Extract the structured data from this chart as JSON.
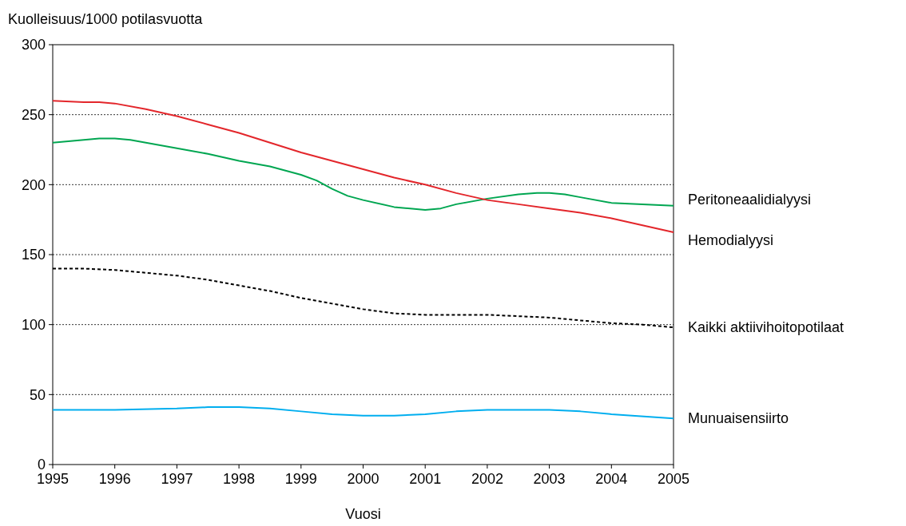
{
  "chart_data": {
    "type": "line",
    "ylabel": "Kuolleisuus/1000 potilasvuotta",
    "xlabel": "Vuosi",
    "xlim": [
      1995,
      2005
    ],
    "xticks": [
      1995,
      1996,
      1997,
      1998,
      1999,
      2000,
      2001,
      2002,
      2003,
      2004,
      2005
    ],
    "ylim": [
      0,
      300
    ],
    "yticks": [
      0,
      50,
      100,
      150,
      200,
      250,
      300
    ],
    "grid": "y",
    "series": [
      {
        "name": "Peritoneaalidialyysi",
        "color": "#00a651",
        "x": [
          1995,
          1995.5,
          1995.75,
          1996,
          1996.25,
          1996.5,
          1997,
          1997.5,
          1998,
          1998.5,
          1999,
          1999.25,
          1999.5,
          1999.75,
          2000,
          2000.5,
          2001,
          2001.25,
          2001.5,
          2002,
          2002.5,
          2002.8,
          2003,
          2003.25,
          2003.5,
          2004,
          2004.5,
          2005
        ],
        "values": [
          230,
          232,
          233,
          233,
          232,
          230,
          226,
          222,
          217,
          213,
          207,
          203,
          197,
          192,
          189,
          184,
          182,
          183,
          186,
          190,
          193,
          194,
          194,
          193,
          191,
          187,
          186,
          185
        ]
      },
      {
        "name": "Hemodialyysi",
        "color": "#e3262b",
        "x": [
          1995,
          1995.5,
          1995.75,
          1996,
          1996.5,
          1997,
          1997.5,
          1998,
          1998.5,
          1999,
          1999.5,
          2000,
          2000.5,
          2001,
          2001.5,
          2002,
          2002.5,
          2003,
          2003.5,
          2004,
          2004.5,
          2005
        ],
        "values": [
          260,
          259,
          259,
          258,
          254,
          249,
          243,
          237,
          230,
          223,
          217,
          211,
          205,
          200,
          194,
          189,
          186,
          183,
          180,
          176,
          171,
          166
        ]
      },
      {
        "name": "Kaikki aktiivihoitopotilaat",
        "color": "#000000",
        "line_style": "dashed",
        "x": [
          1995,
          1995.5,
          1996,
          1996.5,
          1997,
          1997.5,
          1998,
          1998.5,
          1999,
          1999.5,
          2000,
          2000.5,
          2001,
          2001.5,
          2002,
          2002.5,
          2003,
          2003.5,
          2004,
          2004.5,
          2005
        ],
        "values": [
          140,
          140,
          139,
          137,
          135,
          132,
          128,
          124,
          119,
          115,
          111,
          108,
          107,
          107,
          107,
          106,
          105,
          103,
          101,
          100,
          98
        ]
      },
      {
        "name": "Munuaisensiirto",
        "color": "#00aeef",
        "x": [
          1995,
          1996,
          1997,
          1997.5,
          1998,
          1998.5,
          1999,
          1999.5,
          2000,
          2000.5,
          2001,
          2001.5,
          2002,
          2003,
          2003.5,
          2004,
          2005
        ],
        "values": [
          39,
          39,
          40,
          41,
          41,
          40,
          38,
          36,
          35,
          35,
          36,
          38,
          39,
          39,
          38,
          36,
          33
        ]
      }
    ]
  }
}
